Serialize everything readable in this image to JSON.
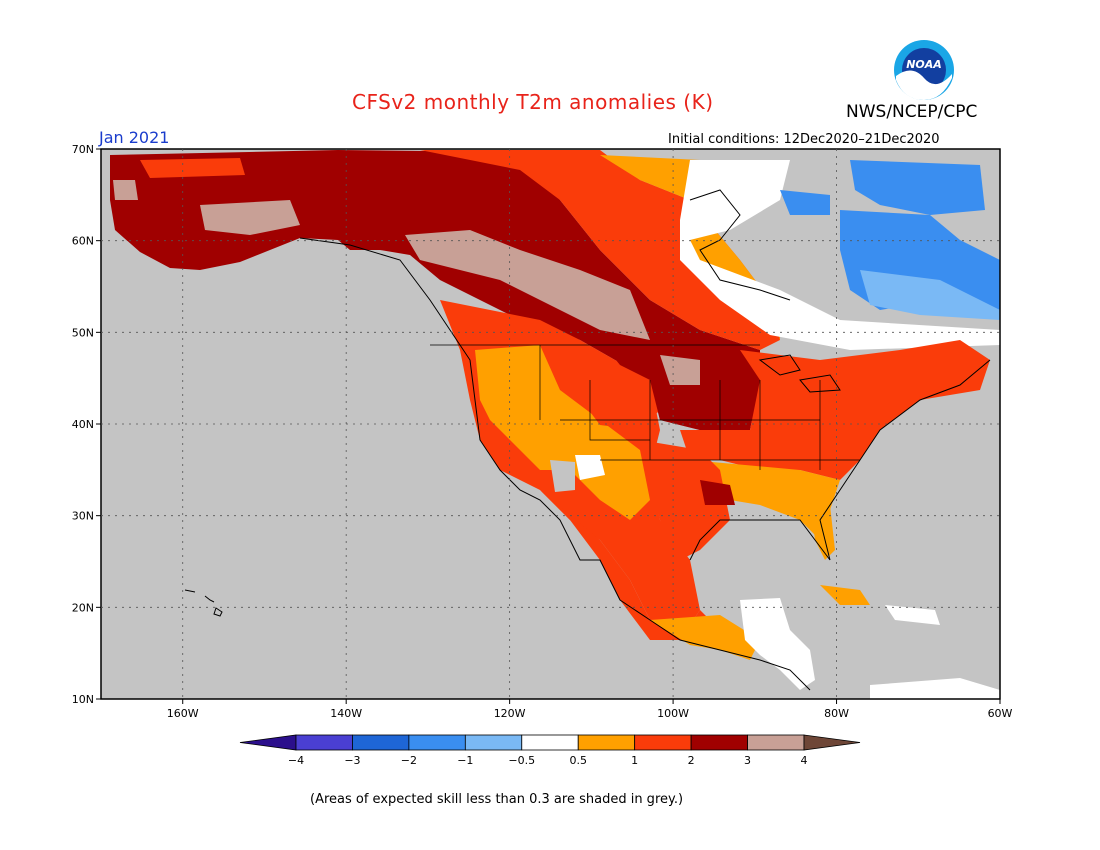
{
  "title": "CFSv2 monthly T2m anomalies (K)",
  "agency": "NWS/NCEP/CPC",
  "logo_text": "NOAA",
  "month": "Jan 2021",
  "initial_conditions": "Initial conditions: 12Dec2020–21Dec2020",
  "footnote": "(Areas of expected skill less than 0.3 are shaded in grey.)",
  "map": {
    "lat_range": [
      10,
      70
    ],
    "lon_range": [
      -170,
      -60
    ],
    "lat_ticks": [
      {
        "value": 70,
        "label": "70N"
      },
      {
        "value": 60,
        "label": "60N"
      },
      {
        "value": 50,
        "label": "50N"
      },
      {
        "value": 40,
        "label": "40N"
      },
      {
        "value": 30,
        "label": "30N"
      },
      {
        "value": 20,
        "label": "20N"
      },
      {
        "value": 10,
        "label": "10N"
      }
    ],
    "lon_ticks": [
      {
        "value": -160,
        "label": "160W"
      },
      {
        "value": -140,
        "label": "140W"
      },
      {
        "value": -120,
        "label": "120W"
      },
      {
        "value": -100,
        "label": "100W"
      },
      {
        "value": -80,
        "label": "80W"
      },
      {
        "value": -60,
        "label": "60W"
      }
    ],
    "low_skill_color": "#c4c4c4",
    "coast_color": "#000000",
    "grid": true
  },
  "colorbar": {
    "colors": [
      "#2b0f8c",
      "#4a3fd2",
      "#1e66d6",
      "#3a8ef0",
      "#7ab9f5",
      "#ffffff",
      "#ffa000",
      "#fa3c0a",
      "#a00000",
      "#c8a096",
      "#6e4637"
    ],
    "labels": [
      "−4",
      "−3",
      "−2",
      "−1",
      "−0.5",
      "0.5",
      "1",
      "2",
      "3",
      "4"
    ]
  },
  "colors": {
    "title": "#e8231a",
    "month": "#1a3ccc"
  }
}
